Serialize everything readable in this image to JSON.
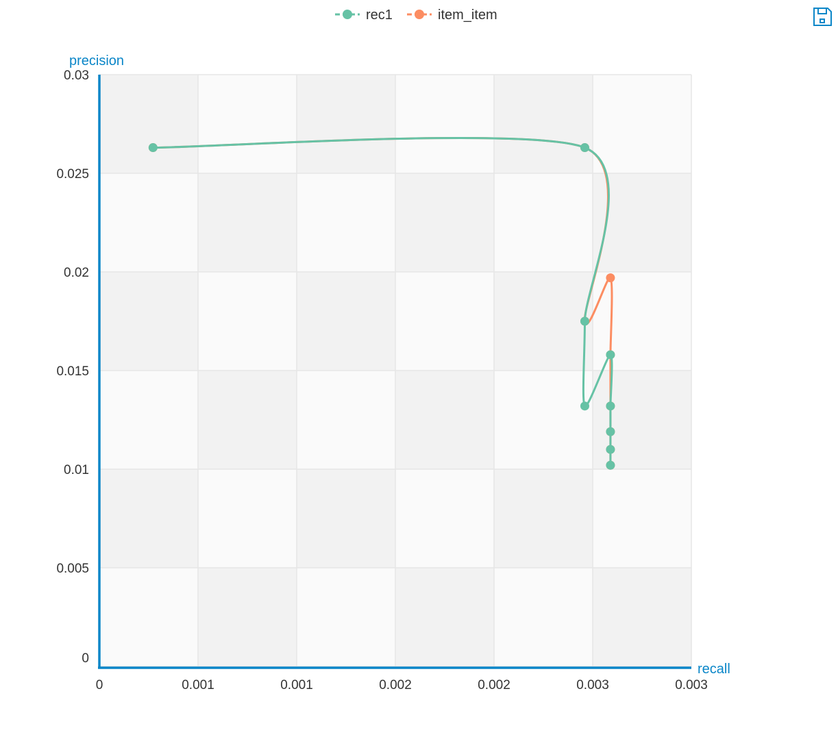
{
  "colors": {
    "axis": "#0a86c8",
    "grid": "#e6e6e6",
    "band_dark": "#f2f2f2",
    "band_light": "#fafafa",
    "tick_text": "#333333",
    "rec1": "#66c2a5",
    "item_item": "#fc8d62"
  },
  "toolbar": {
    "save_icon": "floppy-disk-icon"
  },
  "chart_data": {
    "type": "line",
    "xlabel": "recall",
    "ylabel": "precision",
    "xlim": [
      0,
      0.003
    ],
    "ylim": [
      0,
      0.03
    ],
    "x_ticks": [
      {
        "value": 0,
        "label": "0"
      },
      {
        "value": 0.0005,
        "label": "0.001"
      },
      {
        "value": 0.001,
        "label": "0.001"
      },
      {
        "value": 0.0015,
        "label": "0.002"
      },
      {
        "value": 0.002,
        "label": "0.002"
      },
      {
        "value": 0.0025,
        "label": "0.003"
      },
      {
        "value": 0.003,
        "label": "0.003"
      }
    ],
    "y_ticks": [
      {
        "value": 0,
        "label": "0"
      },
      {
        "value": 0.005,
        "label": "0.005"
      },
      {
        "value": 0.01,
        "label": "0.01"
      },
      {
        "value": 0.015,
        "label": "0.015"
      },
      {
        "value": 0.02,
        "label": "0.02"
      },
      {
        "value": 0.025,
        "label": "0.025"
      },
      {
        "value": 0.03,
        "label": "0.03"
      }
    ],
    "grid": true,
    "legend_position": "top-center",
    "series": [
      {
        "name": "item_item",
        "color": "#fc8d62",
        "points": [
          [
            0.000272,
            0.0263
          ],
          [
            0.00246,
            0.0263
          ],
          [
            0.00246,
            0.0175
          ],
          [
            0.00259,
            0.0197
          ],
          [
            0.00259,
            0.0158
          ],
          [
            0.00259,
            0.0132
          ],
          [
            0.00259,
            0.0119
          ],
          [
            0.00259,
            0.011
          ],
          [
            0.00259,
            0.0102
          ]
        ]
      },
      {
        "name": "rec1",
        "color": "#66c2a5",
        "points": [
          [
            0.000272,
            0.0263
          ],
          [
            0.00246,
            0.0263
          ],
          [
            0.00246,
            0.0175
          ],
          [
            0.00246,
            0.0132
          ],
          [
            0.00259,
            0.0158
          ],
          [
            0.00259,
            0.0132
          ],
          [
            0.00259,
            0.0119
          ],
          [
            0.00259,
            0.011
          ],
          [
            0.00259,
            0.0102
          ]
        ]
      }
    ]
  }
}
